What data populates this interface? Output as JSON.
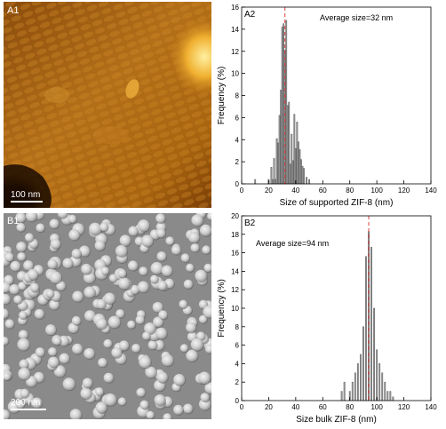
{
  "panels": {
    "a1": {
      "label": "A1",
      "scale_bar": "100 nm"
    },
    "b1": {
      "label": "B1",
      "scale_bar": "200 nm"
    }
  },
  "colors": {
    "bar_fill": "#a0a0a0",
    "bar_stroke": "#555555",
    "mean_line": "#e04040",
    "afm_dark": "#2a1400",
    "afm_bright": "#f0b030",
    "sem_bg": "#8a8a8a"
  },
  "chart_data": [
    {
      "type": "bar",
      "panel_label": "A2",
      "annotation": "Average size=32 nm",
      "xlabel": "Size of supported ZIF-8 (nm)",
      "ylabel": "Frequency (%)",
      "xlim": [
        0,
        140
      ],
      "ylim": [
        0,
        16
      ],
      "xticks": [
        0,
        20,
        40,
        60,
        80,
        100,
        120,
        140
      ],
      "yticks": [
        0,
        2,
        4,
        6,
        8,
        10,
        12,
        14,
        16
      ],
      "mean": 32,
      "bin_width": 1,
      "x": [
        10,
        20,
        22,
        23,
        24,
        25,
        26,
        27,
        28,
        29,
        30,
        31,
        32,
        33,
        34,
        35,
        36,
        37,
        38,
        39,
        40,
        41,
        42,
        43,
        44,
        45,
        46,
        48,
        50
      ],
      "values": [
        0.4,
        0.4,
        1.5,
        0.4,
        2.3,
        0.4,
        4.1,
        3.7,
        6.2,
        8.5,
        14.2,
        14.5,
        12.1,
        14.8,
        7.1,
        7.4,
        1.8,
        4.5,
        2.1,
        6.3,
        3.2,
        5.6,
        3.8,
        3.1,
        2.2,
        1.6,
        1.4,
        0.6,
        0.4
      ]
    },
    {
      "type": "bar",
      "panel_label": "B2",
      "annotation": "Average size=94 nm",
      "xlabel": "Size bulk ZIF-8 (nm)",
      "ylabel": "Frequency (%)",
      "xlim": [
        0,
        140
      ],
      "ylim": [
        0,
        20
      ],
      "xticks": [
        0,
        20,
        40,
        60,
        80,
        100,
        120,
        140
      ],
      "yticks": [
        0,
        2,
        4,
        6,
        8,
        10,
        12,
        14,
        16,
        18,
        20
      ],
      "mean": 94,
      "bin_width": 1,
      "x": [
        74,
        76,
        80,
        82,
        84,
        86,
        88,
        90,
        92,
        94,
        96,
        98,
        100,
        102,
        104,
        106,
        108,
        110,
        112
      ],
      "values": [
        1.0,
        2.0,
        1.0,
        2.0,
        3.0,
        4.0,
        5.0,
        8.0,
        15.6,
        18.3,
        16.6,
        10.0,
        5.5,
        4.0,
        3.0,
        2.0,
        1.0,
        1.0,
        0.4
      ]
    }
  ]
}
